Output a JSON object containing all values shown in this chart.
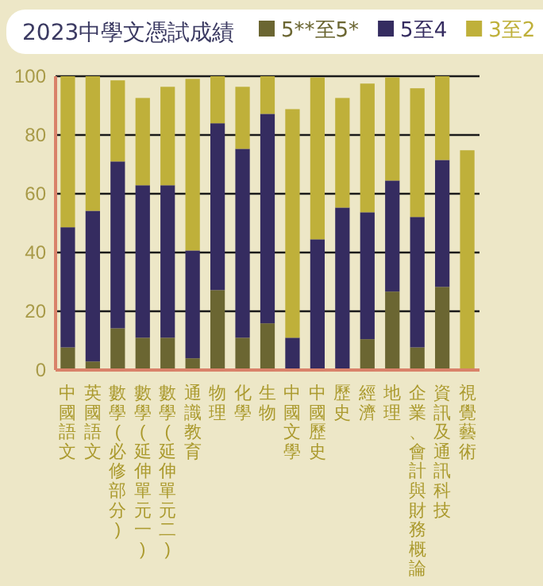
{
  "chart_data": {
    "type": "bar",
    "title": "2023中學文憑試成績",
    "stacked": true,
    "legend": "top right",
    "grid": "y",
    "categories": [
      "中國語文",
      "英國語文",
      "數學(必修部分)",
      "數學(延伸單元一)",
      "數學(延伸單元二)",
      "通識教育",
      "物理",
      "化學",
      "生物",
      "中國文學",
      "中國歷史",
      "歷史",
      "經濟",
      "地理",
      "企業、會計與財務概論",
      "資訊及通訊科技",
      "視覺藝術"
    ],
    "ylim": [
      0,
      100
    ],
    "yticks": [
      0,
      20,
      40,
      60,
      80,
      100
    ],
    "series": [
      {
        "name": "5**至5*",
        "color": "#6b6632",
        "values": [
          7.7,
          2.9,
          14.2,
          11,
          11,
          4,
          27.2,
          11,
          15.9,
          0,
          0,
          0,
          10.5,
          26.7,
          7.7,
          28.3,
          0
        ]
      },
      {
        "name": "5至4",
        "color": "#352c60",
        "values": [
          40.9,
          51.3,
          56.8,
          51.9,
          51.9,
          36.7,
          56.8,
          64.3,
          71.3,
          11,
          44.5,
          55.3,
          43.2,
          37.8,
          44.4,
          43.2,
          0
        ]
      },
      {
        "name": "3至2",
        "color": "#bfb03a",
        "values": [
          51.4,
          45.8,
          27.6,
          29.7,
          33.5,
          58.4,
          16,
          21.1,
          12.8,
          77.8,
          55.1,
          37.3,
          43.8,
          35.1,
          43.8,
          28.5,
          74.8
        ]
      }
    ]
  }
}
